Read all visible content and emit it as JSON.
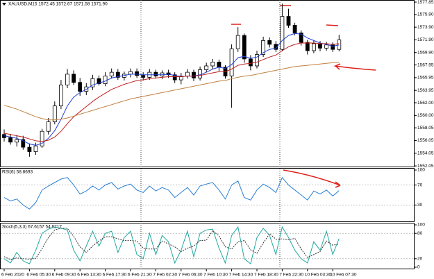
{
  "chart_data": [
    {
      "type": "candlestick",
      "title": "XAUUSD,M15  1572.45 1572.67 1571.58 1571.90",
      "categories": [
        "6 Feb 2020",
        null,
        null,
        null,
        "6 Feb 05:30",
        null,
        null,
        null,
        "6 Feb 09:30",
        null,
        null,
        null,
        "6 Feb 13:30",
        null,
        null,
        null,
        "6 Feb 17:30",
        null,
        null,
        null,
        "6 Feb 21:30",
        null,
        null,
        null,
        "7 Feb 02:30",
        null,
        null,
        null,
        "7 Feb 06:30",
        null,
        null,
        null,
        "7 Feb 10:30",
        null,
        null,
        null,
        "7 Feb 14:30",
        null,
        null,
        null,
        "7 Feb 18:30",
        null,
        null,
        null,
        "7 Feb 22:30",
        null,
        null,
        null,
        "10 Feb 03:30",
        null,
        null,
        null,
        "10 Feb 07:30",
        null
      ],
      "open": [
        1557.0,
        1556.5,
        1555.8,
        1556.2,
        1555.0,
        1554.3,
        1555.2,
        1557.5,
        1559.0,
        1561.5,
        1564.8,
        1566.5,
        1565.2,
        1563.8,
        1564.5,
        1565.8,
        1565.0,
        1566.2,
        1566.8,
        1566.0,
        1566.5,
        1566.9,
        1566.3,
        1566.0,
        1566.8,
        1566.2,
        1566.7,
        1566.4,
        1565.6,
        1566.2,
        1566.8,
        1565.9,
        1567.2,
        1567.8,
        1568.4,
        1567.6,
        1566.2,
        1570.5,
        1572.6,
        1568.9,
        1567.8,
        1569.6,
        1571.8,
        1571.2,
        1570.4,
        1575.6,
        1574.2,
        1573.0,
        1571.5,
        1570.2,
        1571.3,
        1570.6,
        1571.1,
        1570.4
      ],
      "high": [
        1557.8,
        1557.1,
        1556.9,
        1556.8,
        1555.6,
        1555.7,
        1557.9,
        1559.6,
        1562.2,
        1565.6,
        1567.3,
        1567.1,
        1565.9,
        1565.1,
        1566.4,
        1566.3,
        1566.8,
        1567.4,
        1567.3,
        1566.9,
        1567.4,
        1567.4,
        1566.8,
        1567.3,
        1567.2,
        1567.1,
        1567.2,
        1566.8,
        1566.7,
        1567.3,
        1567.2,
        1567.7,
        1568.3,
        1568.9,
        1568.8,
        1567.9,
        1571.2,
        1573.9,
        1572.9,
        1569.5,
        1570.2,
        1572.4,
        1572.3,
        1571.7,
        1577.6,
        1576.8,
        1574.6,
        1573.4,
        1571.9,
        1571.8,
        1571.7,
        1571.6,
        1571.5,
        1572.7
      ],
      "low": [
        1555.9,
        1555.4,
        1555.1,
        1554.6,
        1553.5,
        1553.8,
        1554.9,
        1557.0,
        1558.6,
        1561.0,
        1564.3,
        1564.8,
        1563.1,
        1563.2,
        1564.0,
        1564.7,
        1564.6,
        1565.8,
        1565.6,
        1565.5,
        1566.0,
        1565.9,
        1565.5,
        1565.6,
        1565.8,
        1565.7,
        1565.9,
        1565.1,
        1564.9,
        1565.8,
        1565.4,
        1565.5,
        1566.8,
        1567.3,
        1567.0,
        1565.8,
        1561.2,
        1570.0,
        1568.3,
        1567.1,
        1567.4,
        1569.2,
        1570.7,
        1570.0,
        1570.1,
        1573.8,
        1572.6,
        1571.0,
        1569.6,
        1569.8,
        1570.1,
        1570.2,
        1570.0,
        1570.1
      ],
      "close": [
        1556.5,
        1555.8,
        1556.2,
        1555.0,
        1554.3,
        1555.2,
        1557.5,
        1559.0,
        1561.5,
        1564.8,
        1566.5,
        1565.2,
        1563.8,
        1564.5,
        1565.8,
        1565.0,
        1566.2,
        1566.8,
        1566.0,
        1566.5,
        1566.9,
        1566.3,
        1566.0,
        1566.8,
        1566.2,
        1566.7,
        1566.4,
        1565.6,
        1566.2,
        1566.8,
        1565.9,
        1567.2,
        1567.8,
        1568.4,
        1567.6,
        1566.2,
        1570.5,
        1572.6,
        1568.9,
        1567.8,
        1569.6,
        1571.8,
        1571.2,
        1570.4,
        1575.6,
        1574.2,
        1573.0,
        1571.5,
        1570.2,
        1571.3,
        1570.6,
        1571.1,
        1570.4,
        1571.9
      ],
      "series": [
        {
          "color": "#1f3fd8",
          "values": [
            1556.8,
            1556.6,
            1556.4,
            1556.0,
            1555.5,
            1555.3,
            1555.6,
            1556.4,
            1557.6,
            1559.4,
            1561.5,
            1562.9,
            1563.6,
            1564.1,
            1564.8,
            1565.1,
            1565.4,
            1565.9,
            1566.1,
            1566.3,
            1566.5,
            1566.5,
            1566.4,
            1566.4,
            1566.4,
            1566.4,
            1566.5,
            1566.3,
            1566.1,
            1566.2,
            1566.2,
            1566.4,
            1566.8,
            1567.3,
            1567.6,
            1567.4,
            1568.0,
            1569.1,
            1569.3,
            1569.0,
            1569.2,
            1569.9,
            1570.4,
            1570.6,
            1571.8,
            1572.6,
            1572.9,
            1572.8,
            1572.2,
            1571.8,
            1571.4,
            1571.2,
            1570.9,
            1571.1
          ]
        },
        {
          "color": "#c0201f",
          "values": [
            1557.2,
            1557.0,
            1556.8,
            1556.6,
            1556.3,
            1556.0,
            1555.9,
            1556.1,
            1556.6,
            1557.5,
            1558.7,
            1559.8,
            1560.6,
            1561.4,
            1562.2,
            1562.9,
            1563.5,
            1564.1,
            1564.5,
            1564.9,
            1565.2,
            1565.5,
            1565.6,
            1565.8,
            1565.9,
            1566.0,
            1566.1,
            1566.1,
            1566.1,
            1566.2,
            1566.2,
            1566.3,
            1566.5,
            1566.7,
            1566.9,
            1566.9,
            1567.3,
            1567.9,
            1568.1,
            1568.2,
            1568.4,
            1568.8,
            1569.2,
            1569.5,
            1570.2,
            1570.8,
            1571.2,
            1571.4,
            1571.4,
            1571.4,
            1571.3,
            1571.3,
            1571.2,
            1571.3
          ]
        },
        {
          "color": "#c08040",
          "values": [
            1561.6,
            1561.3,
            1561.0,
            1560.6,
            1560.2,
            1559.8,
            1559.5,
            1559.3,
            1559.3,
            1559.4,
            1559.6,
            1559.9,
            1560.2,
            1560.5,
            1560.8,
            1561.1,
            1561.4,
            1561.7,
            1562.0,
            1562.3,
            1562.6,
            1562.8,
            1563.0,
            1563.2,
            1563.4,
            1563.6,
            1563.8,
            1564.0,
            1564.2,
            1564.4,
            1564.6,
            1564.8,
            1565.0,
            1565.2,
            1565.4,
            1565.5,
            1565.8,
            1566.0,
            1566.2,
            1566.3,
            1566.5,
            1566.7,
            1566.9,
            1567.1,
            1567.3,
            1567.5,
            1567.7,
            1567.8,
            1567.9,
            1568.0,
            1568.1,
            1568.2,
            1568.3,
            1568.4
          ]
        }
      ],
      "ylim": [
        1551.84,
        1578.18
      ],
      "yticks": [
        1577.85,
        {
          "value": 1575.9,
          "label": "1575.90"
        },
        {
          "value": 1573.9,
          "label": "1573.90"
        },
        {
          "value": 1571.9,
          "label": "1571.90"
        },
        {
          "value": 1569.9,
          "label": "1569.90"
        },
        1567.95,
        1565.95,
        1563.95,
        {
          "value": 1562,
          "label": "1562.00"
        },
        {
          "value": 1560,
          "label": "1560.00"
        },
        1558.05,
        1556.05,
        1554.05,
        1552.05
      ]
    },
    {
      "type": "line",
      "title": "RSI(6) 58.8693",
      "series": [
        {
          "color": "#2a7fd4",
          "values": [
            45,
            38,
            42,
            30,
            22,
            35,
            60,
            68,
            75,
            82,
            85,
            70,
            52,
            58,
            68,
            60,
            70,
            75,
            62,
            68,
            72,
            60,
            55,
            68,
            58,
            65,
            60,
            45,
            55,
            65,
            50,
            68,
            72,
            75,
            60,
            42,
            70,
            78,
            45,
            40,
            60,
            72,
            65,
            55,
            85,
            70,
            60,
            50,
            40,
            58,
            52,
            60,
            48,
            58.8693
          ]
        }
      ],
      "ylim": [
        0,
        100
      ],
      "yticks": [
        100,
        70,
        30
      ]
    },
    {
      "type": "line",
      "title": "Stoch(5,3,3) 67.6157 54.8217",
      "series": [
        {
          "color": "#20a8a0",
          "values": [
            20,
            10,
            35,
            15,
            8,
            40,
            80,
            90,
            95,
            92,
            88,
            40,
            15,
            50,
            85,
            50,
            80,
            85,
            35,
            70,
            85,
            30,
            20,
            80,
            30,
            75,
            60,
            10,
            40,
            85,
            25,
            80,
            88,
            90,
            45,
            10,
            75,
            95,
            20,
            8,
            70,
            92,
            75,
            30,
            95,
            70,
            40,
            20,
            10,
            60,
            40,
            85,
            30,
            67.6157
          ]
        },
        {
          "color": "#333333",
          "dash": true,
          "values": [
            25,
            18,
            22,
            20,
            19,
            21,
            44,
            70,
            88,
            92,
            92,
            73,
            48,
            35,
            50,
            62,
            72,
            72,
            67,
            63,
            63,
            62,
            45,
            43,
            43,
            62,
            55,
            48,
            37,
            45,
            50,
            63,
            64,
            86,
            74,
            48,
            43,
            60,
            63,
            41,
            33,
            57,
            79,
            66,
            67,
            65,
            68,
            43,
            23,
            30,
            37,
            62,
            52,
            54.8217
          ]
        }
      ],
      "ylim": [
        0,
        100
      ],
      "yticks": [
        100,
        80,
        20,
        0
      ]
    }
  ]
}
